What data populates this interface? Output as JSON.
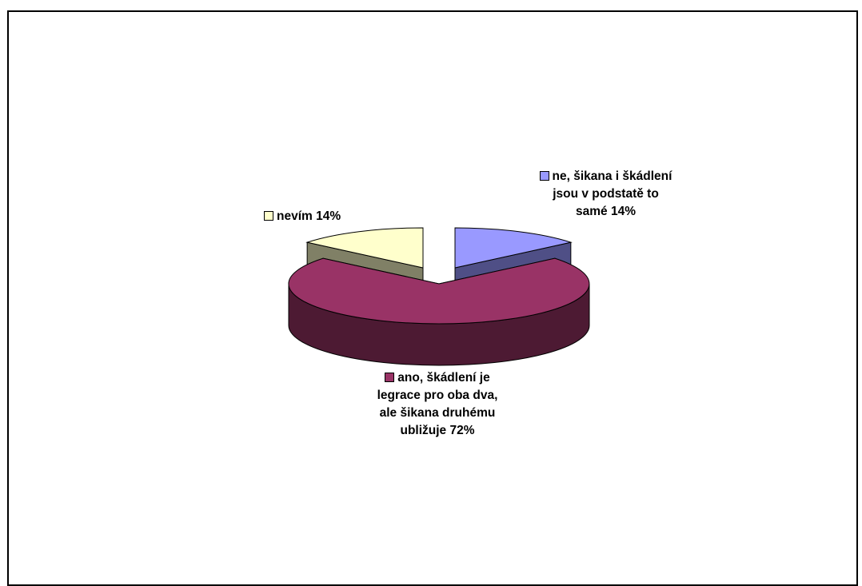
{
  "chart_data": {
    "type": "pie",
    "three_d": true,
    "exploded": true,
    "slices": [
      {
        "label": "ne, šikana i škádlení jsou v podstatě to samé 14%",
        "value": 14,
        "color": "#9999ff",
        "side_color": "#4f4f86"
      },
      {
        "label": "ano, škádlení je legrace pro oba dva, ale šikana druhému ubližuje 72%",
        "value": 72,
        "color": "#993366",
        "side_color": "#4d1a33"
      },
      {
        "label": "nevím 14%",
        "value": 14,
        "color": "#ffffcc",
        "side_color": "#808066"
      }
    ],
    "legend": "none",
    "labels_outside": true
  }
}
